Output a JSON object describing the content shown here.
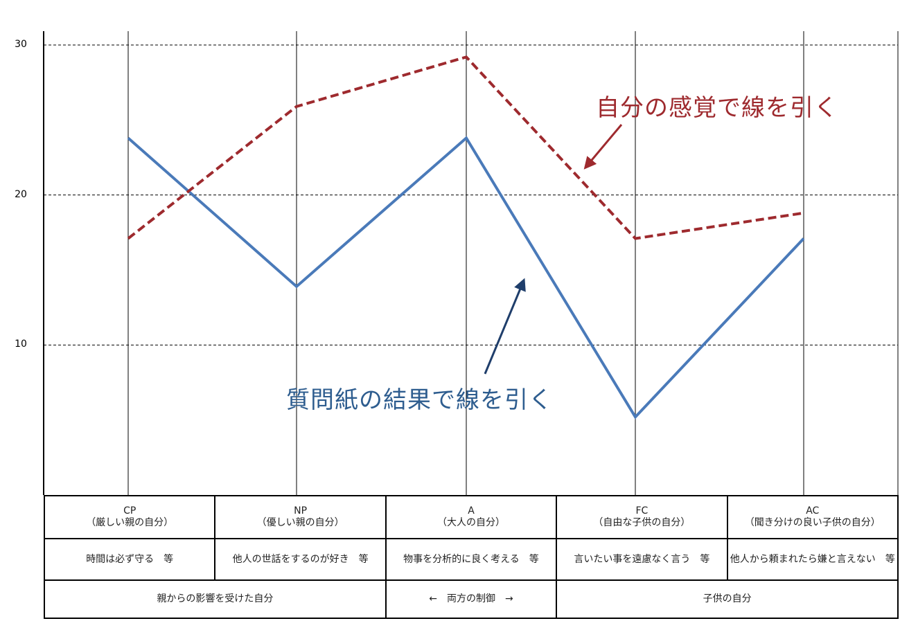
{
  "chart_data": {
    "type": "line",
    "categories": [
      "CP",
      "NP",
      "A",
      "FC",
      "AC"
    ],
    "ylim": [
      0,
      30
    ],
    "yticks": [
      "10",
      "20",
      "30"
    ],
    "grid": true,
    "series": [
      {
        "values": [
          23.8,
          13.9,
          23.8,
          5.2,
          17.1
        ],
        "color": "#4a7ab9",
        "style": "solid"
      },
      {
        "values": [
          17.1,
          25.9,
          29.2,
          17.1,
          18.8
        ],
        "color": "#9e2a2e",
        "style": "dashed"
      }
    ],
    "annotations": {
      "self_feeling": "自分の感覚で線を引く",
      "questionnaire": "質問紙の結果で線を引く"
    }
  },
  "legend_table": {
    "row1": [
      "CP\n（厳しい親の自分）",
      "NP\n（優しい親の自分）",
      "A\n（大人の自分）",
      "FC\n（自由な子供の自分）",
      "AC\n（聞き分けの良い子供の自分）"
    ],
    "row2": [
      "時間は必ず守る　等",
      "他人の世話をするのが好き　等",
      "物事を分析的に良く考える　等",
      "言いたい事を遠慮なく言う　等",
      "他人から頼まれたら嫌と言えない　等"
    ],
    "row3": [
      "親からの影響を受けた自分",
      "←　両方の制御　→",
      "子供の自分"
    ]
  },
  "colors": {
    "accent_red": "#9e2a2e",
    "accent_blue": "#4a7ab9",
    "annot_blue": "#2e5d8f"
  }
}
